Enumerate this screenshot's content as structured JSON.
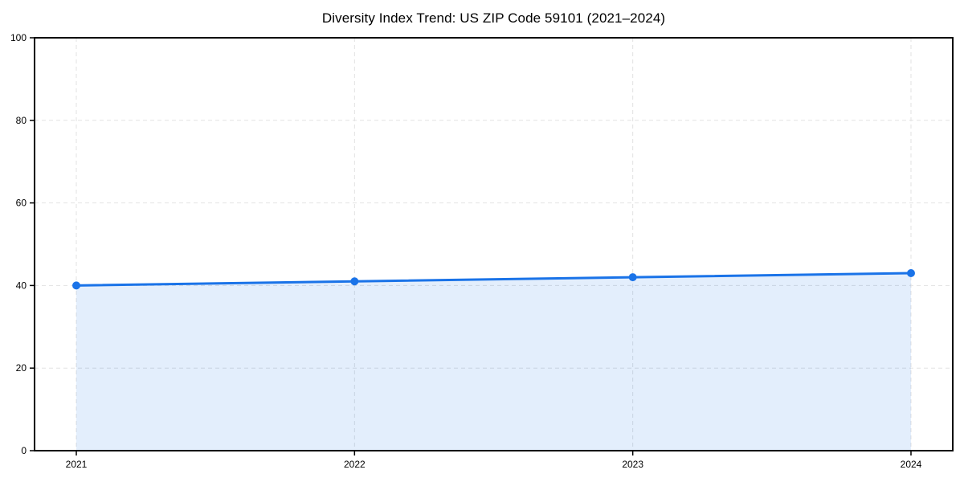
{
  "chart_data": {
    "type": "area",
    "title": "Diversity Index Trend: US ZIP Code 59101 (2021–2024)",
    "x": [
      "2021",
      "2022",
      "2023",
      "2024"
    ],
    "series": [
      {
        "name": "Diversity Index",
        "values": [
          40,
          41,
          42,
          43
        ]
      }
    ],
    "xlabel": "",
    "ylabel": "",
    "ylim": [
      0,
      100
    ],
    "yticks": [
      0,
      20,
      40,
      60,
      80,
      100
    ],
    "grid": true,
    "grid_style": "dashed",
    "legend_position": "none",
    "colors": {
      "line": "#1a73e8",
      "marker": "#1a73e8",
      "fill": "#1a73e8",
      "fill_opacity": 0.12,
      "grid": "#e2e2e2",
      "spine": "#000000",
      "tick": "#000000",
      "text": "#000000",
      "background": "#ffffff"
    }
  }
}
